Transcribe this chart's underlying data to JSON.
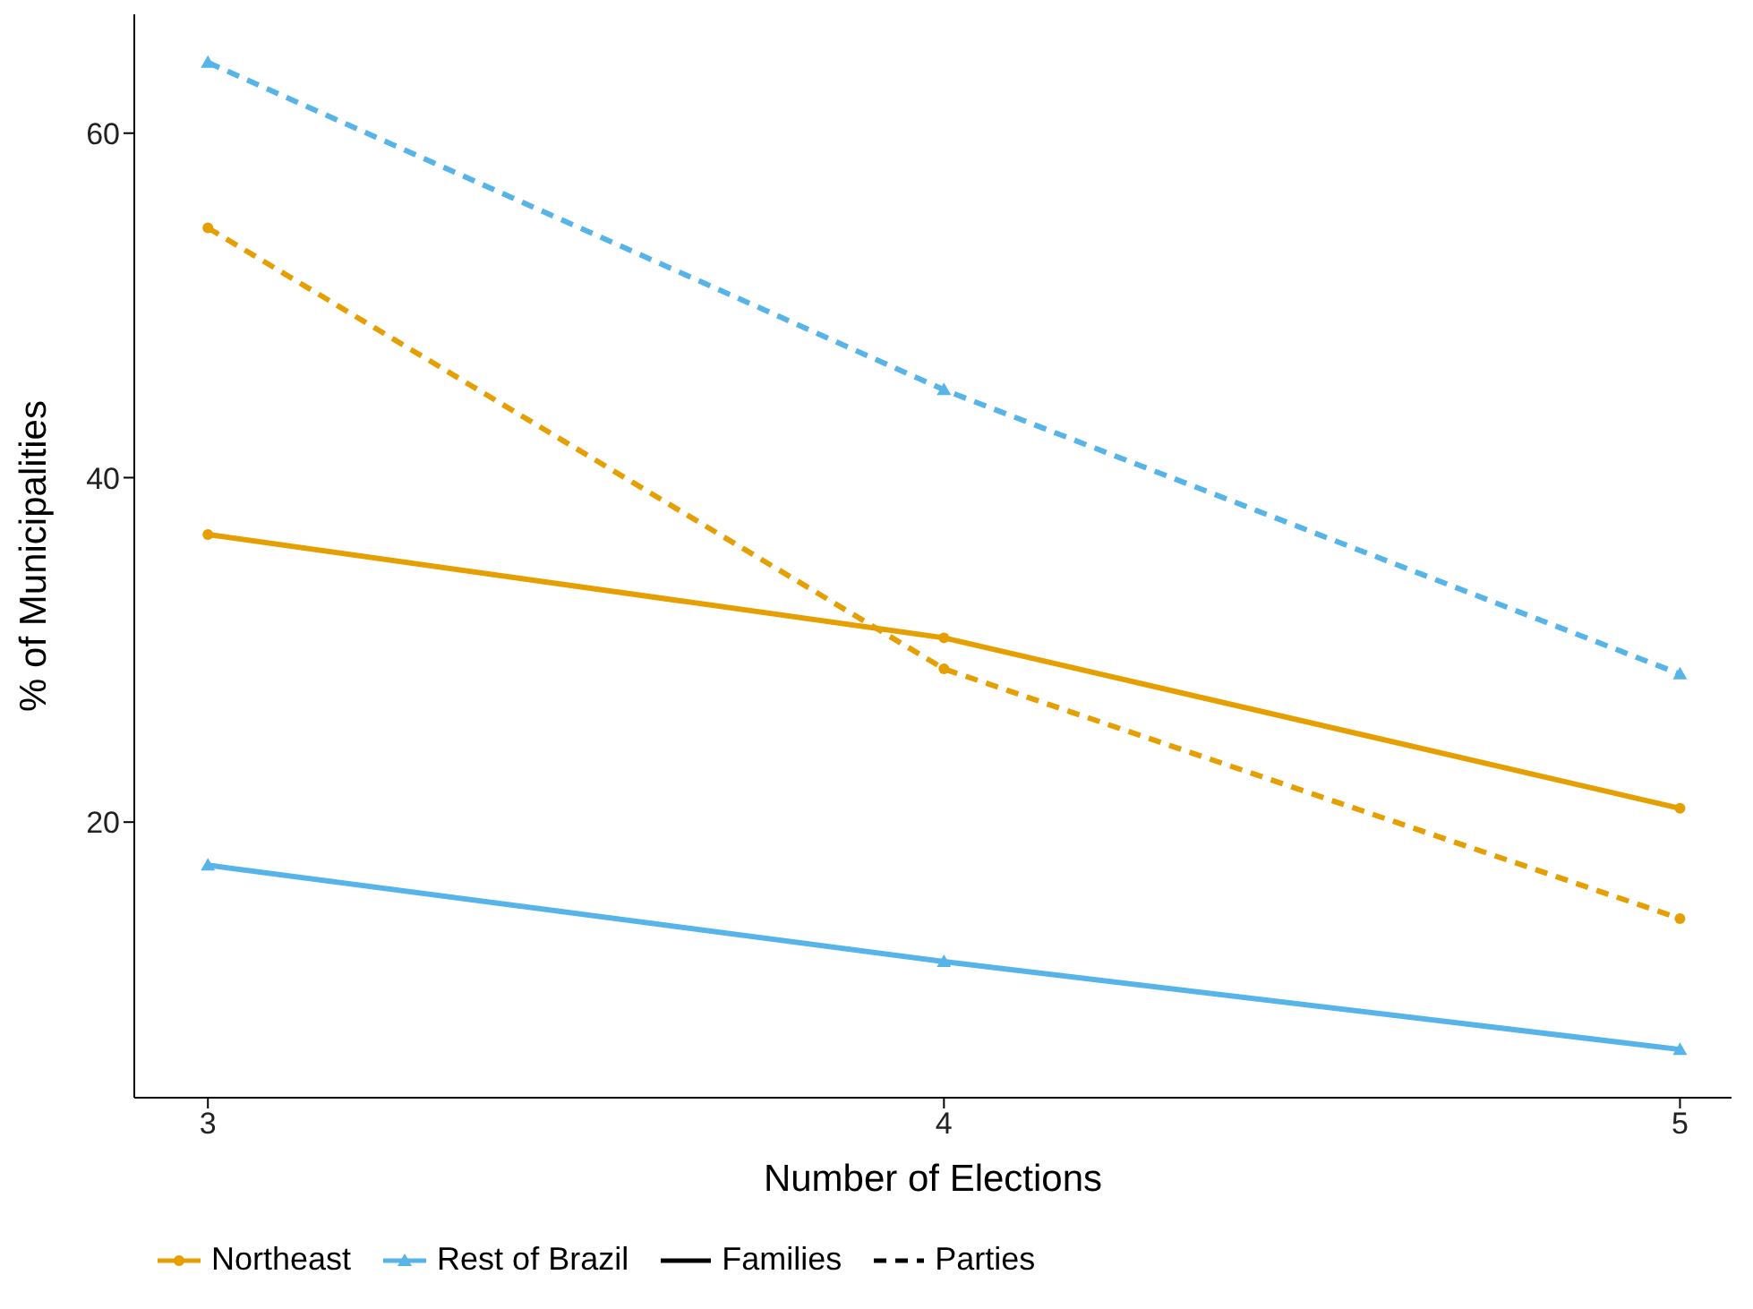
{
  "chart_data": {
    "type": "line",
    "xlabel": "Number of Elections",
    "ylabel": "% of Municipalities",
    "x": [
      3,
      4,
      5
    ],
    "xlim": [
      2.9,
      5.07
    ],
    "xticks": [
      3,
      4,
      5
    ],
    "ylim": [
      4,
      66.9
    ],
    "yticks": [
      20,
      40,
      60
    ],
    "grid": false,
    "legend": "bottom",
    "annotations": [
      "Families",
      "Parties"
    ],
    "series": [
      {
        "name": "Northeast",
        "color": "#e69f00",
        "marker": "circle",
        "line_style": "solid",
        "values": [
          36.7,
          30.7,
          20.8
        ]
      },
      {
        "color": "#e69f00",
        "marker": "circle",
        "line_style": "dashed",
        "values": [
          54.5,
          28.9,
          14.4
        ]
      },
      {
        "name": "Rest of Brazil",
        "color": "#56b4e9",
        "marker": "triangle",
        "line_style": "solid",
        "values": [
          17.5,
          11.9,
          6.8
        ]
      },
      {
        "color": "#56b4e9",
        "marker": "triangle",
        "line_style": "dashed",
        "values": [
          64.1,
          45.1,
          28.6
        ]
      }
    ]
  }
}
